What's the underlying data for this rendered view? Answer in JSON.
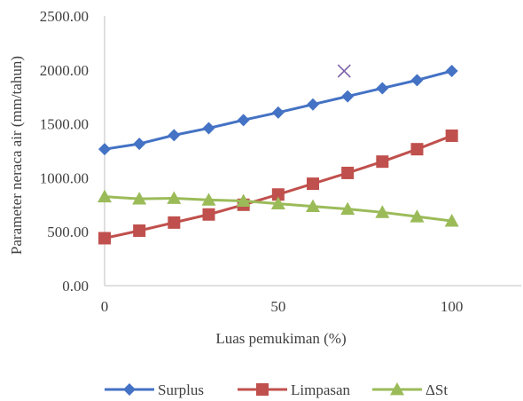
{
  "chart_data": {
    "type": "line",
    "title": "",
    "xlabel": "Luas pemukiman (%)",
    "ylabel": "Parameter neraca air (mm/tahun)",
    "xlim": [
      0,
      120
    ],
    "ylim": [
      0,
      2500
    ],
    "x_ticks": [
      0,
      50,
      100
    ],
    "x_tick_labels": [
      "0",
      "50",
      "100"
    ],
    "y_ticks": [
      0,
      500,
      1000,
      1500,
      2000,
      2500
    ],
    "y_tick_labels": [
      "0.00",
      "500.00",
      "1000.00",
      "1500.00",
      "2000.00",
      "2500.00"
    ],
    "grid": false,
    "legend_position": "bottom",
    "x": [
      0,
      10,
      20,
      30,
      40,
      50,
      60,
      70,
      80,
      90,
      100
    ],
    "series": [
      {
        "name": "Surplus",
        "marker": "diamond",
        "color": "#4472C4",
        "values": [
          1265,
          1315,
          1395,
          1460,
          1535,
          1605,
          1680,
          1755,
          1830,
          1905,
          1990
        ]
      },
      {
        "name": "Limpasan",
        "marker": "square",
        "color": "#C0504D",
        "values": [
          440,
          510,
          585,
          660,
          750,
          845,
          945,
          1045,
          1150,
          1265,
          1390
        ]
      },
      {
        "name": "ΔSt",
        "marker": "triangle",
        "color": "#9BBB59",
        "values": [
          825,
          805,
          810,
          795,
          785,
          760,
          735,
          710,
          680,
          640,
          600
        ]
      }
    ],
    "extra_points": [
      {
        "marker": "x",
        "color": "#7B5FA6",
        "x": 69,
        "y": 1990
      }
    ]
  }
}
